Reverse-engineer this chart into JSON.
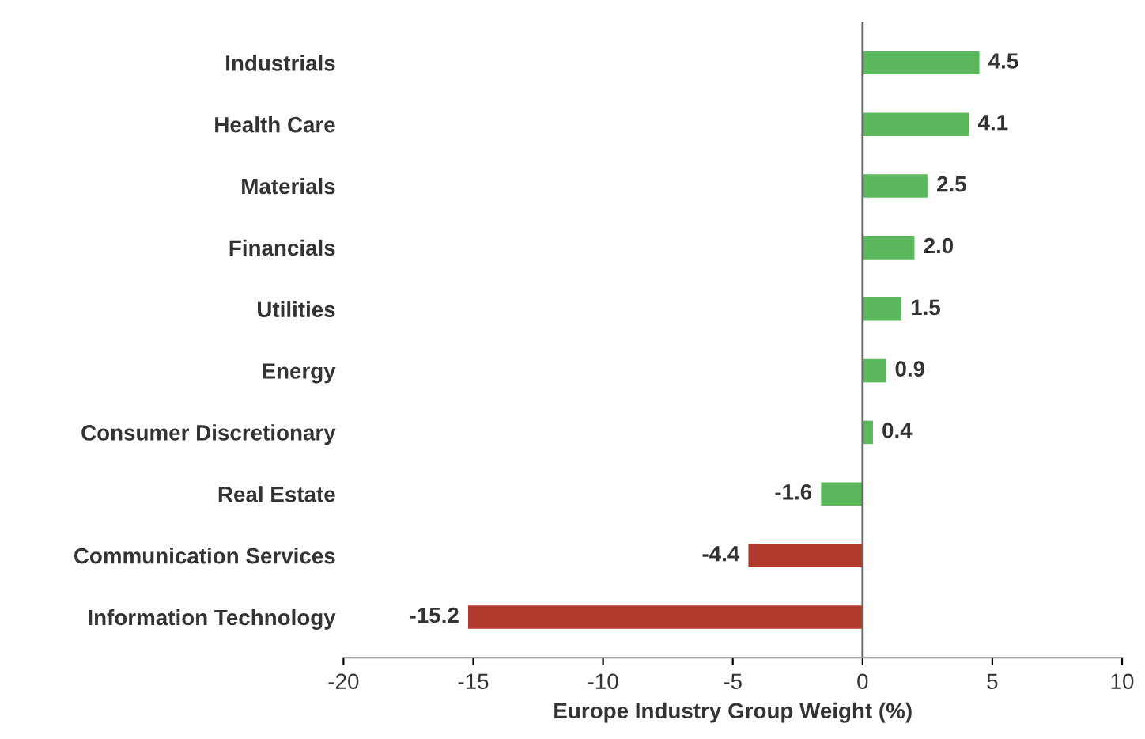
{
  "chart_data": {
    "type": "bar",
    "orientation": "horizontal",
    "categories": [
      "Industrials",
      "Health Care",
      "Materials",
      "Financials",
      "Utilities",
      "Energy",
      "Consumer Discretionary",
      "Real Estate",
      "Communication Services",
      "Information Technology"
    ],
    "values": [
      4.5,
      4.1,
      2.5,
      2.0,
      1.5,
      0.9,
      0.4,
      -1.6,
      -4.4,
      -15.2
    ],
    "value_labels": [
      "4.5",
      "4.1",
      "2.5",
      "2.0",
      "1.5",
      "0.9",
      "0.4",
      "-1.6",
      "-4.4",
      "-15.2"
    ],
    "colors": [
      "#5cb85c",
      "#5cb85c",
      "#5cb85c",
      "#5cb85c",
      "#5cb85c",
      "#5cb85c",
      "#5cb85c",
      "#5cb85c",
      "#b03a2e",
      "#b03a2e"
    ],
    "xlabel": "Europe Industry Group Weight (%)",
    "xlim": [
      -20,
      10
    ],
    "xticks": [
      -20,
      -15,
      -10,
      -5,
      0,
      5,
      10
    ],
    "ref_lines": [
      {
        "axis": "x",
        "value": 0,
        "color": "#666666"
      }
    ],
    "grid": false,
    "legend": false
  }
}
